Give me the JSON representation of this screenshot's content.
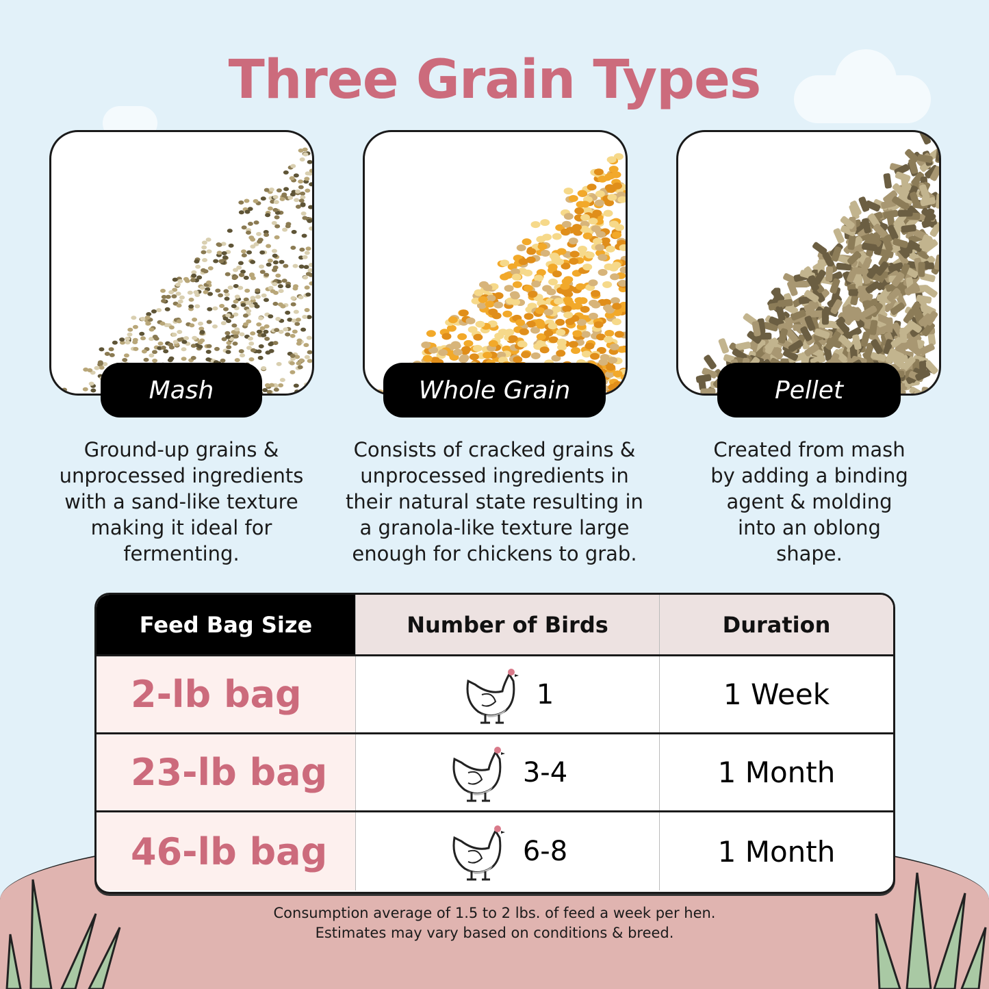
{
  "title": "Three Grain Types",
  "colors": {
    "accent": "#cc6b7c",
    "background": "#e2f1f9",
    "ground": "#e0b4b0",
    "grass": "#a9c9a4"
  },
  "grains": [
    {
      "name": "Mash",
      "description": "Ground-up grains & unprocessed ingredients with a sand-like texture making it ideal for fermenting.",
      "colors": [
        "#8a7a52",
        "#5e5436",
        "#b8a678",
        "#d9cfb0"
      ]
    },
    {
      "name": "Whole Grain",
      "description": "Consists of cracked grains & unprocessed ingredients in their natural state resulting in a granola-like texture large enough for chickens to grab.",
      "colors": [
        "#f2a92a",
        "#e08e1a",
        "#d7b47a",
        "#f6d98a"
      ]
    },
    {
      "name": "Pellet",
      "description": "Created from mash by adding a binding agent & molding into an oblong shape.",
      "colors": [
        "#8c7c58",
        "#a89772",
        "#6b5e42",
        "#c2b48e"
      ]
    }
  ],
  "table": {
    "headers": [
      "Feed Bag Size",
      "Number of Birds",
      "Duration"
    ],
    "rows": [
      {
        "size": "2-lb bag",
        "birds": "1",
        "duration": "1 Week",
        "icon": "chicken-icon"
      },
      {
        "size": "23-lb bag",
        "birds": "3-4",
        "duration": "1 Month",
        "icon": "chicken-icon"
      },
      {
        "size": "46-lb bag",
        "birds": "6-8",
        "duration": "1 Month",
        "icon": "chicken-icon"
      }
    ]
  },
  "notes": [
    "Consumption average of 1.5 to 2 lbs. of feed a week per hen.",
    "Estimates may vary based on conditions & breed."
  ]
}
